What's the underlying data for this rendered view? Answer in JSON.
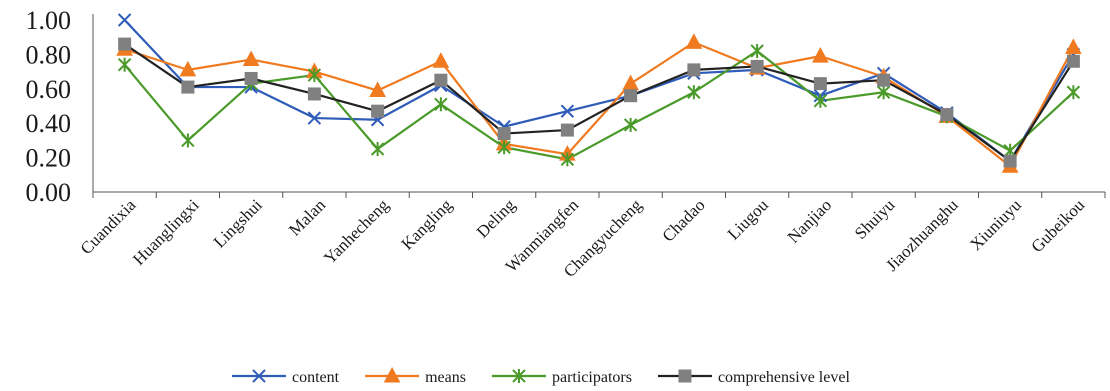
{
  "chart_data": {
    "type": "line",
    "title": "",
    "xlabel": "",
    "ylabel": "",
    "ylim": [
      0,
      1
    ],
    "y_ticks": [
      "0.00",
      "0.20",
      "0.40",
      "0.60",
      "0.80",
      "1.00"
    ],
    "grid": false,
    "legend_position": "bottom",
    "categories": [
      "Cuandixia",
      "Huanglingxi",
      "Lingshui",
      "Malan",
      "Yanhecheng",
      "Kangling",
      "Deling",
      "Wanmiangfen",
      "Changyucheng",
      "Chadao",
      "Liugou",
      "Nanjiao",
      "Shuiyu",
      "Jiaozhuanghu",
      "Xiuniuyu",
      "Gubeikou"
    ],
    "series": [
      {
        "name": "content",
        "color": "#2e5cb8",
        "marker": "x",
        "values": [
          1.0,
          0.61,
          0.61,
          0.43,
          0.42,
          0.62,
          0.38,
          0.47,
          0.56,
          0.69,
          0.71,
          0.56,
          0.69,
          0.46,
          0.18,
          0.8
        ]
      },
      {
        "name": "means",
        "color": "#f07a20",
        "marker": "triangle",
        "values": [
          0.83,
          0.71,
          0.77,
          0.7,
          0.59,
          0.76,
          0.28,
          0.22,
          0.63,
          0.87,
          0.72,
          0.79,
          0.67,
          0.44,
          0.15,
          0.84
        ]
      },
      {
        "name": "participators",
        "color": "#4a9a2a",
        "marker": "star",
        "values": [
          0.74,
          0.3,
          0.63,
          0.68,
          0.25,
          0.51,
          0.26,
          0.19,
          0.39,
          0.58,
          0.82,
          0.53,
          0.58,
          0.44,
          0.24,
          0.58
        ]
      },
      {
        "name": "comprehensive level",
        "color": "#222222",
        "marker": "square",
        "marker_color": "#808080",
        "values": [
          0.86,
          0.61,
          0.66,
          0.57,
          0.47,
          0.65,
          0.34,
          0.36,
          0.56,
          0.71,
          0.73,
          0.63,
          0.65,
          0.45,
          0.18,
          0.76
        ]
      }
    ]
  }
}
